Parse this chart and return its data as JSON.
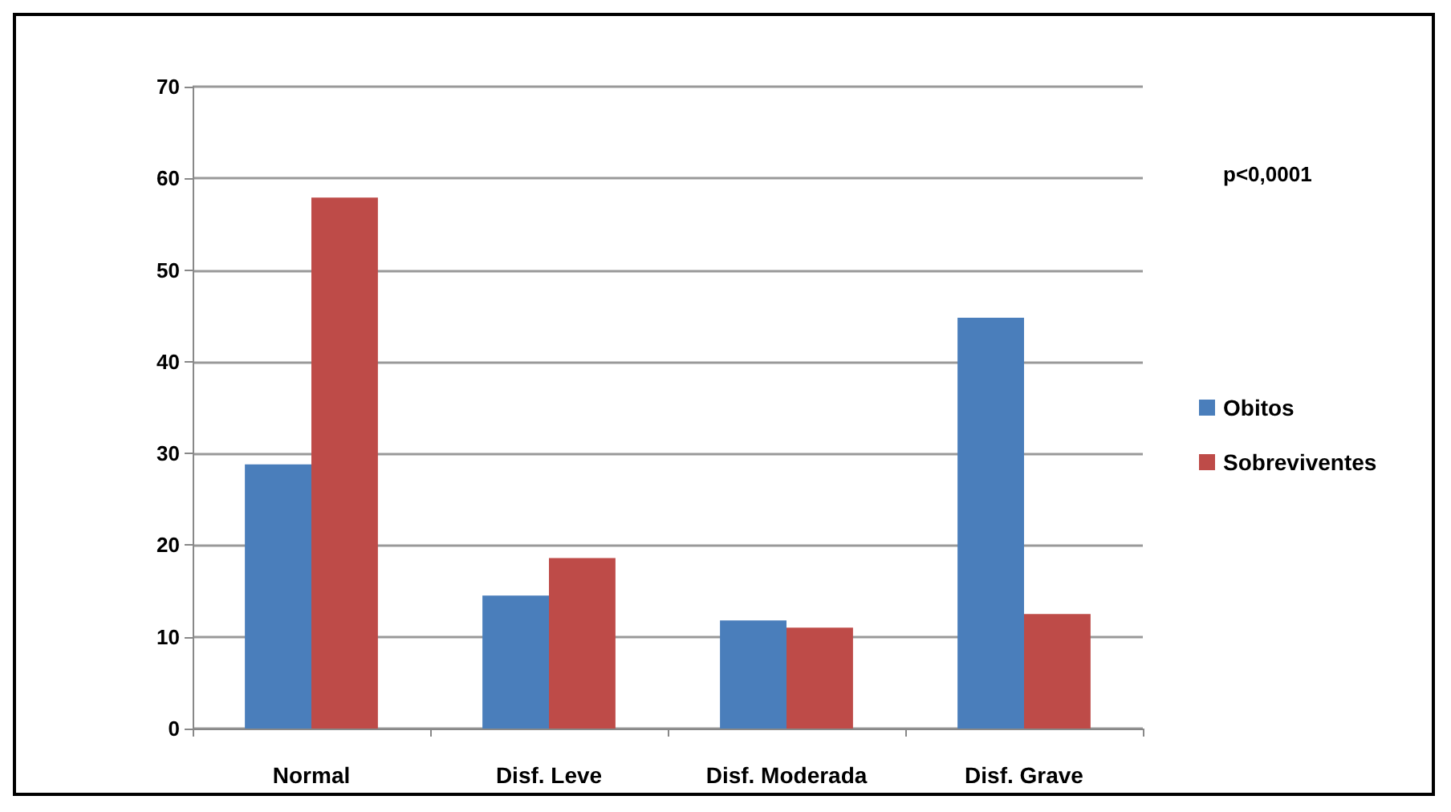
{
  "chart_data": {
    "type": "bar",
    "categories": [
      "Normal",
      "Disf. Leve",
      "Disf. Moderada",
      "Disf. Grave"
    ],
    "series": [
      {
        "name": "Obitos",
        "color": "#4a7ebb",
        "values": [
          28.8,
          14.5,
          11.8,
          44.8
        ]
      },
      {
        "name": "Sobreviventes",
        "color": "#be4b48",
        "values": [
          57.9,
          18.6,
          11.0,
          12.5
        ]
      }
    ],
    "ylim": [
      0,
      70
    ],
    "yticks": [
      0,
      10,
      20,
      30,
      40,
      50,
      60,
      70
    ],
    "grid": "y",
    "legend": "right",
    "annotations": [
      "p<0,0001"
    ]
  }
}
